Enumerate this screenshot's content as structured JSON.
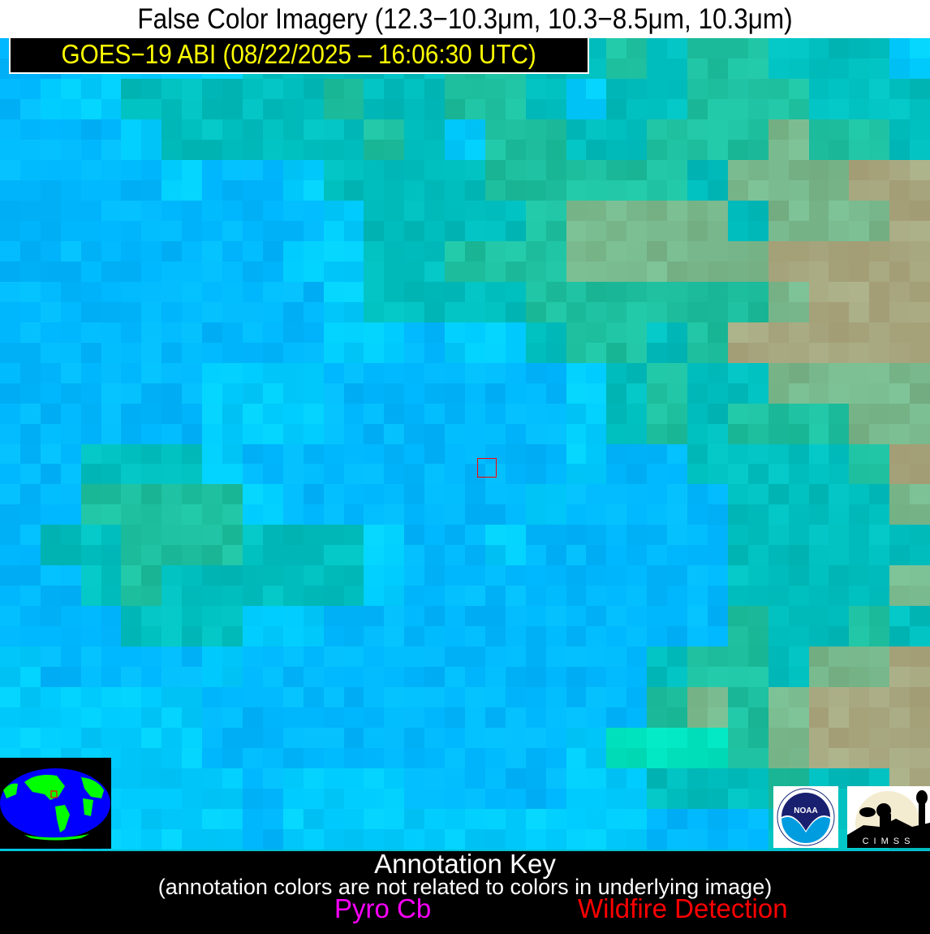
{
  "title": "False Color Imagery (12.3−10.3μm, 10.3−8.5μm, 10.3μm)",
  "satellite_label": "GOES−19 ABI (08/22/2025 – 16:06:30 UTC)",
  "annotation_key": {
    "heading": "Annotation Key",
    "note": "(annotation colors are not related to colors in underlying image)",
    "items": [
      {
        "label": "Pyro Cb",
        "color": "#ff00ff"
      },
      {
        "label": "Wildfire Detection",
        "color": "#ff0000"
      }
    ]
  },
  "colors": {
    "label_text": "#ffff00",
    "region_box": "#ff0000",
    "globe_ocean": "#0000ff",
    "globe_land": "#00ff00"
  },
  "logos": {
    "noaa": "NOAA",
    "cimss": "CIMSS"
  }
}
